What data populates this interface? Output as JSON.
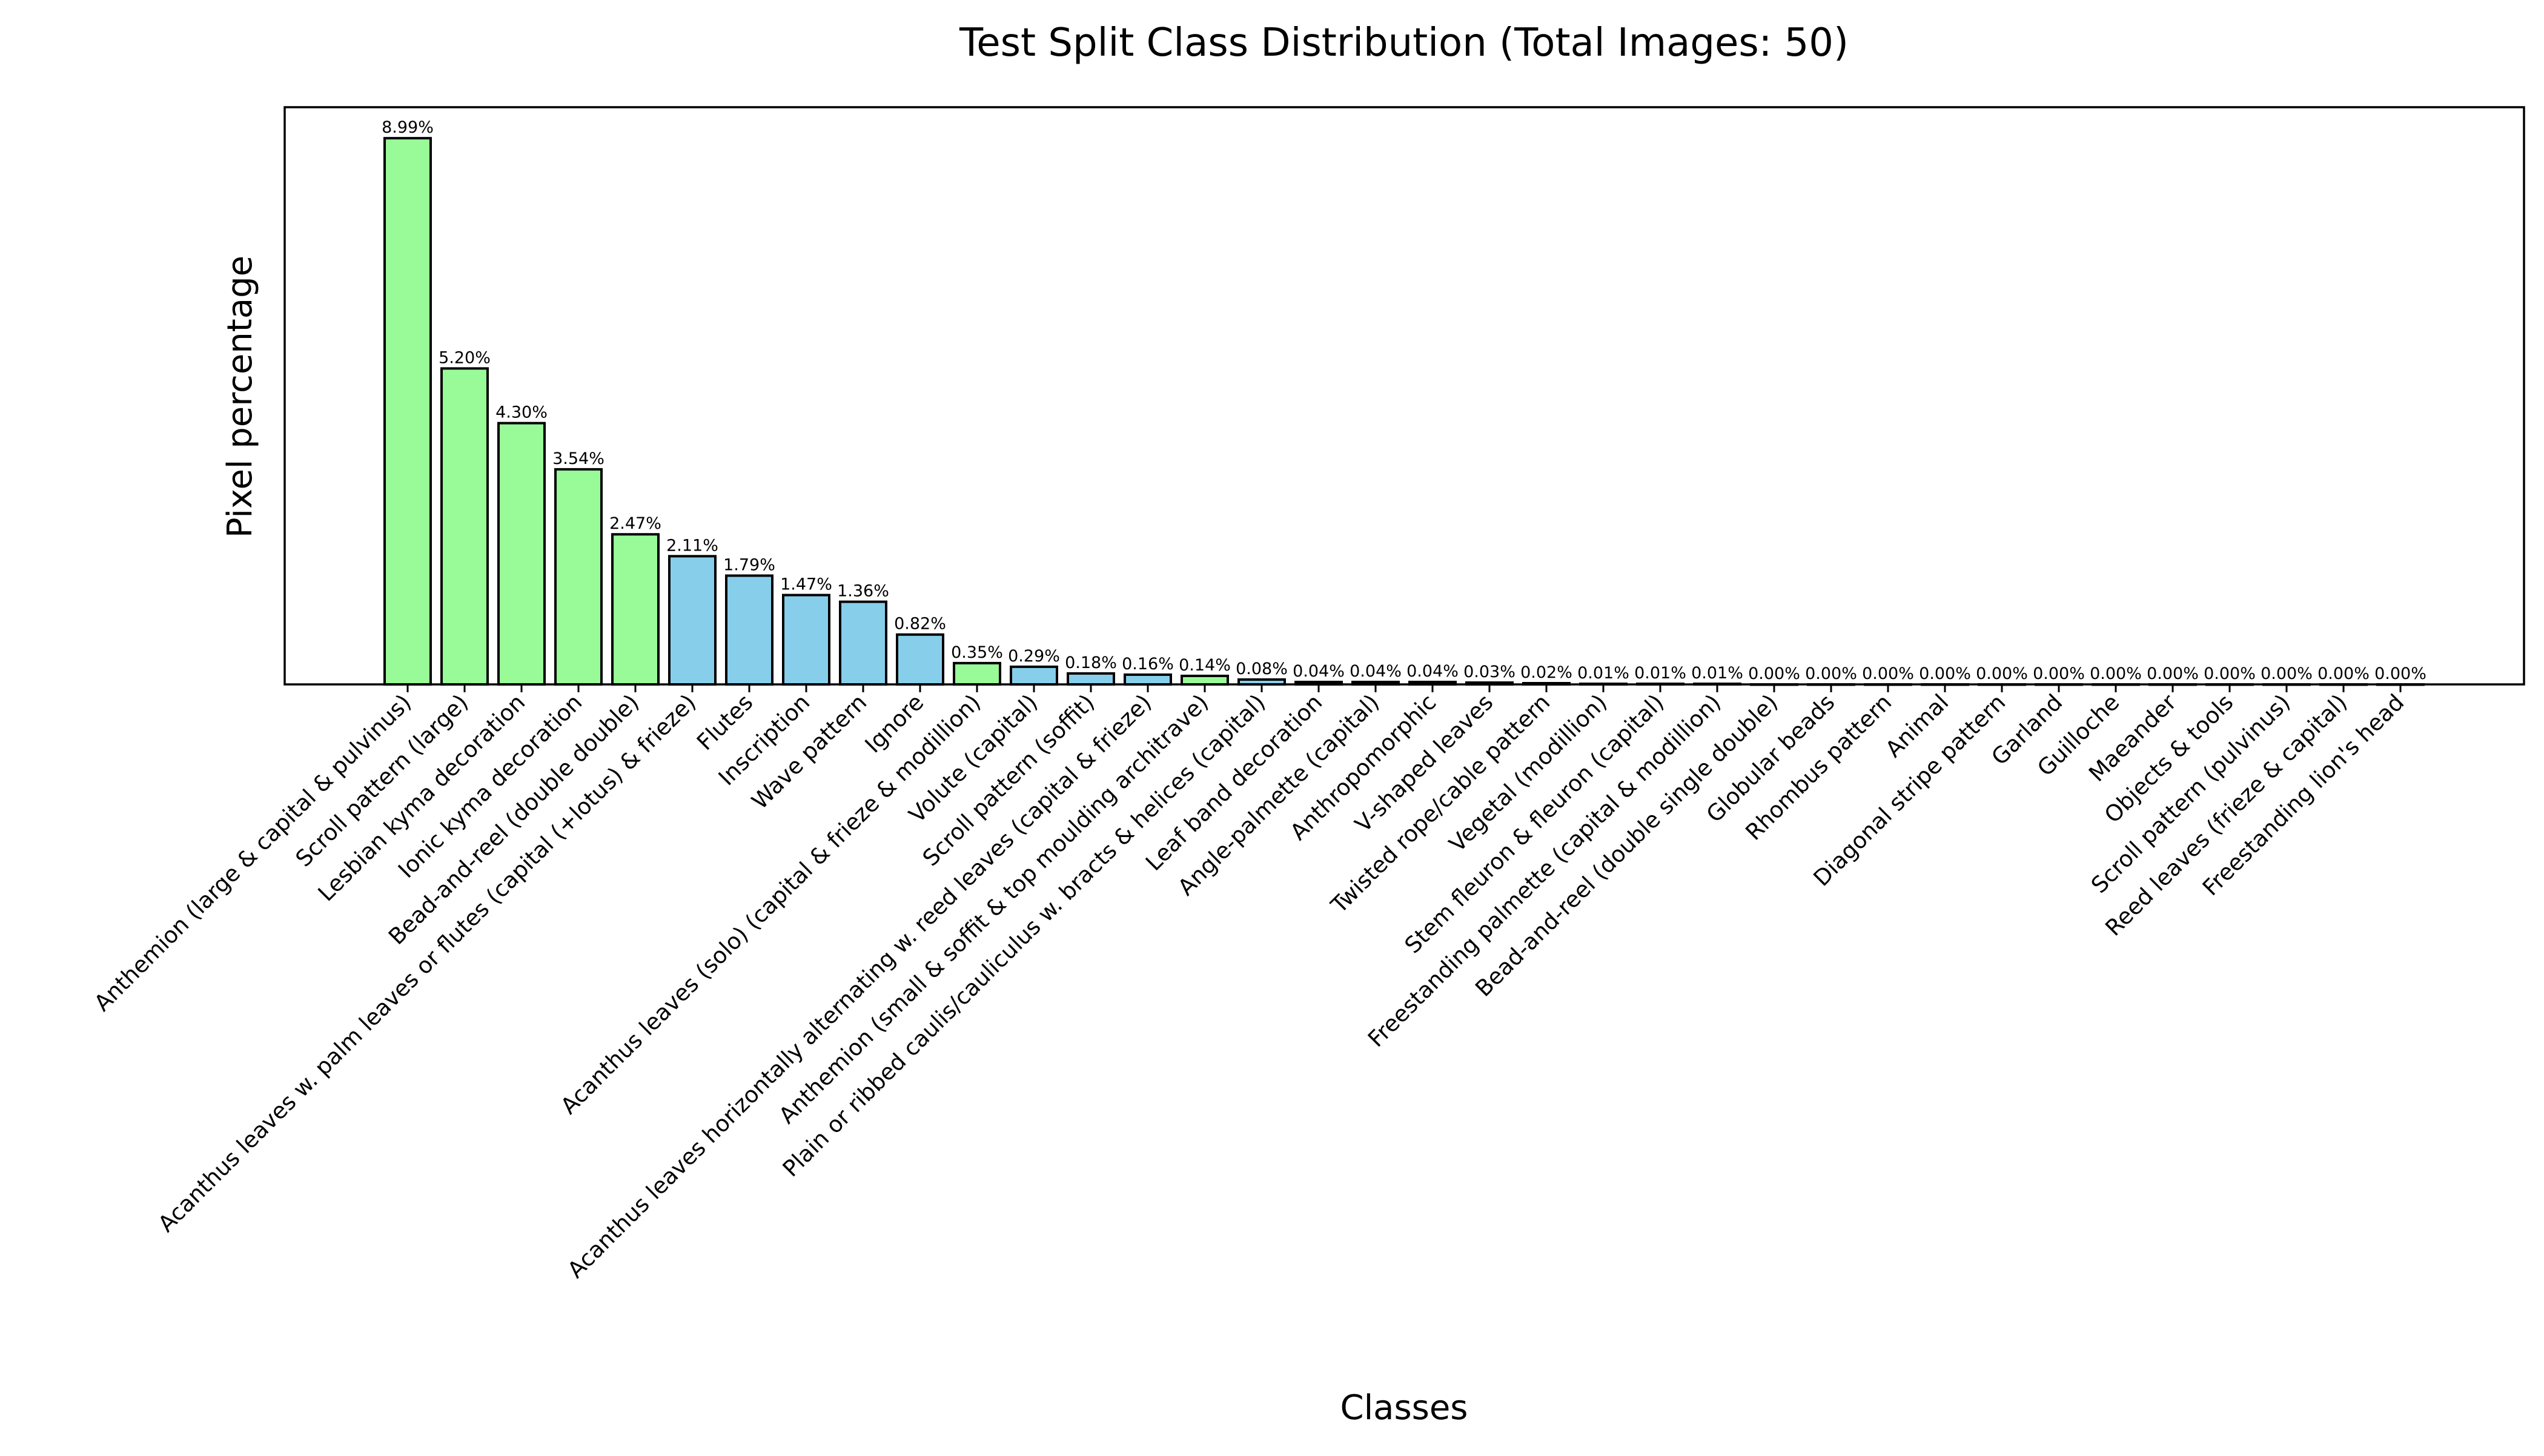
{
  "chart_data": {
    "type": "bar",
    "title": "Test Split Class Distribution (Total Images: 50)",
    "xlabel": "Classes",
    "ylabel": "Pixel percentage",
    "ylim": [
      0,
      9.5
    ],
    "grid": false,
    "legend": null,
    "categories": [
      "Anthemion (large & capital & pulvinus)",
      "Scroll pattern (large)",
      "Lesbian kyma decoration",
      "Ionic kyma decoration",
      "Bead-and-reel (double double)",
      "Acanthus leaves w. palm leaves or flutes (capital (+lotus) & frieze)",
      "Flutes",
      "Inscription",
      "Wave pattern",
      "Ignore",
      "Acanthus leaves (solo) (capital & frieze & modillion)",
      "Volute (capital)",
      "Scroll pattern (soffit)",
      "Acanthus leaves horizontally alternating w. reed leaves (capital & frieze)",
      "Anthemion (small & soffit & top moulding architrave)",
      "Plain or ribbed caulis/cauliculus w. bracts & helices (capital)",
      "Leaf band decoration",
      "Angle-palmette (capital)",
      "Anthropomorphic",
      "V-shaped leaves",
      "Twisted rope/cable pattern",
      "Vegetal (modillion)",
      "Stem fleuron & fleuron (capital)",
      "Freestanding palmette (capital & modillion)",
      "Bead-and-reel (double single double)",
      "Globular beads",
      "Rhombus pattern",
      "Animal",
      "Diagonal stripe pattern",
      "Garland",
      "Guilloche",
      "Maeander",
      "Objects & tools",
      "Scroll pattern (pulvinus)",
      "Reed leaves (frieze & capital)",
      "Freestanding lion's head"
    ],
    "values": [
      8.99,
      5.2,
      4.3,
      3.54,
      2.47,
      2.11,
      1.79,
      1.47,
      1.36,
      0.82,
      0.35,
      0.29,
      0.18,
      0.16,
      0.14,
      0.08,
      0.04,
      0.04,
      0.04,
      0.03,
      0.02,
      0.01,
      0.01,
      0.01,
      0.0,
      0.0,
      0.0,
      0.0,
      0.0,
      0.0,
      0.0,
      0.0,
      0.0,
      0.0,
      0.0,
      0.0
    ],
    "value_labels": [
      "8.99%",
      "5.20%",
      "4.30%",
      "3.54%",
      "2.47%",
      "2.11%",
      "1.79%",
      "1.47%",
      "1.36%",
      "0.82%",
      "0.35%",
      "0.29%",
      "0.18%",
      "0.16%",
      "0.14%",
      "0.08%",
      "0.04%",
      "0.04%",
      "0.04%",
      "0.03%",
      "0.02%",
      "0.01%",
      "0.01%",
      "0.01%",
      "0.00%",
      "0.00%",
      "0.00%",
      "0.00%",
      "0.00%",
      "0.00%",
      "0.00%",
      "0.00%",
      "0.00%",
      "0.00%",
      "0.00%",
      "0.00%"
    ],
    "bar_colors": [
      "#98fb98",
      "#98fb98",
      "#98fb98",
      "#98fb98",
      "#98fb98",
      "#87ceeb",
      "#87ceeb",
      "#87ceeb",
      "#87ceeb",
      "#87ceeb",
      "#98fb98",
      "#87ceeb",
      "#87ceeb",
      "#87ceeb",
      "#98fb98",
      "#87ceeb",
      "#87ceeb",
      "#87ceeb",
      "#87ceeb",
      "#87ceeb",
      "#87ceeb",
      "#87ceeb",
      "#87ceeb",
      "#87ceeb",
      "#87ceeb",
      "#87ceeb",
      "#87ceeb",
      "#87ceeb",
      "#87ceeb",
      "#87ceeb",
      "#87ceeb",
      "#87ceeb",
      "#87ceeb",
      "#87ceeb",
      "#87ceeb",
      "#87ceeb"
    ]
  }
}
